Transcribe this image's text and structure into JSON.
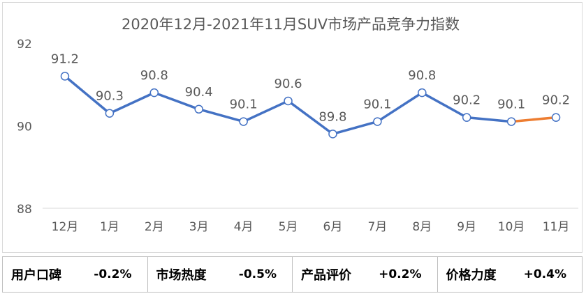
{
  "chart_data": {
    "type": "line",
    "title": "2020年12月-2021年11月SUV市场产品竞争力指数",
    "categories": [
      "12月",
      "1月",
      "2月",
      "3月",
      "4月",
      "5月",
      "6月",
      "7月",
      "8月",
      "9月",
      "10月",
      "11月"
    ],
    "series": [
      {
        "name": "竞争力指数",
        "values": [
          91.2,
          90.3,
          90.8,
          90.4,
          90.1,
          90.6,
          89.8,
          90.1,
          90.8,
          90.2,
          90.1,
          90.2
        ]
      }
    ],
    "ylim": [
      88,
      92
    ],
    "yticks": [
      88,
      90,
      92
    ],
    "xlabel": "",
    "ylabel": "",
    "grid": false,
    "colors": {
      "line": "#4472c4",
      "highlight": "#ed7d31",
      "axis": "#d9d9d9",
      "text": "#595959",
      "marker_fill": "#ffffff"
    }
  },
  "metrics": [
    {
      "label": "用户口碑",
      "value": "-0.2%"
    },
    {
      "label": "市场热度",
      "value": "-0.5%"
    },
    {
      "label": "产品评价",
      "value": "+0.2%"
    },
    {
      "label": "价格力度",
      "value": "+0.4%"
    }
  ]
}
